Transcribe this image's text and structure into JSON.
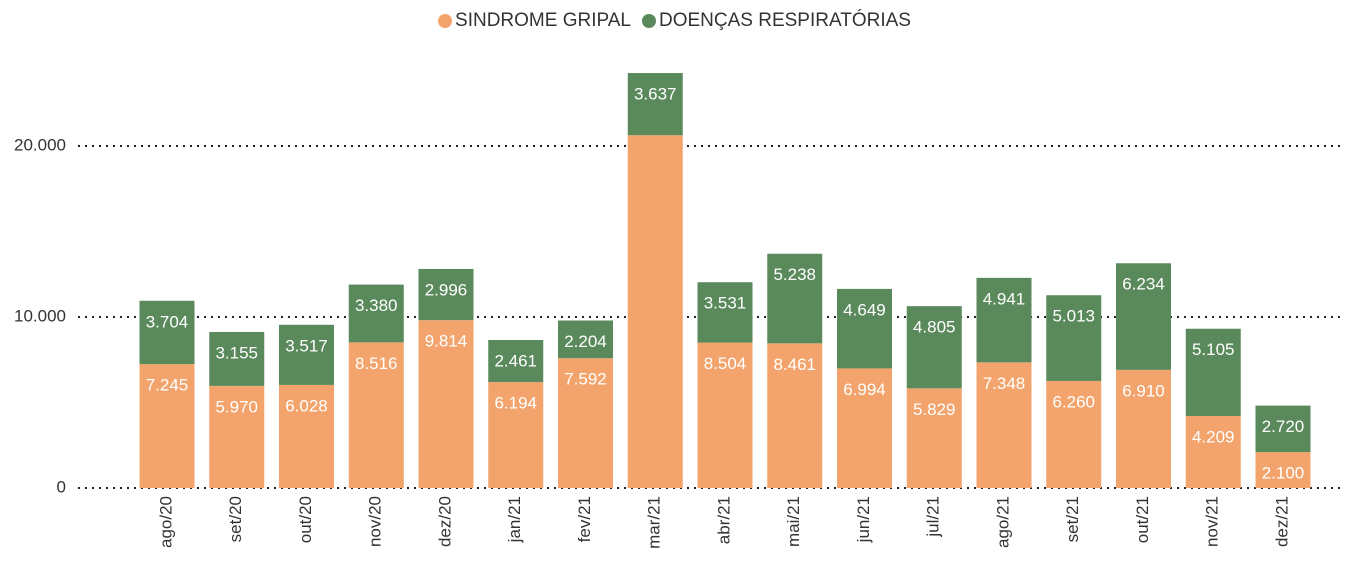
{
  "chart_data": {
    "type": "stacked_bar",
    "categories": [
      "ago/20",
      "set/20",
      "out/20",
      "nov/20",
      "dez/20",
      "jan/21",
      "fev/21",
      "mar/21",
      "abr/21",
      "mai/21",
      "jun/21",
      "jul/21",
      "ago/21",
      "set/21",
      "out/21",
      "nov/21",
      "dez/21"
    ],
    "series": [
      {
        "name": "SINDROME GRIPAL",
        "color": "#f2a46c",
        "values": [
          7245,
          5970,
          6028,
          8516,
          9814,
          6194,
          7592,
          20630,
          8504,
          8461,
          6994,
          5829,
          7348,
          6260,
          6910,
          4209,
          2100
        ],
        "value_labels": [
          "7.245",
          "5.970",
          "6.028",
          "8.516",
          "9.814",
          "6.194",
          "7.592",
          null,
          "8.504",
          "8.461",
          "6.994",
          "5.829",
          "7.348",
          "6.260",
          "6.910",
          "4.209",
          "2.100"
        ]
      },
      {
        "name": "DOENÇAS RESPIRATÓRIAS",
        "color": "#5a8a5c",
        "values": [
          3704,
          3155,
          3517,
          3380,
          2996,
          2461,
          2204,
          3637,
          3531,
          5238,
          4649,
          4805,
          4941,
          5013,
          6234,
          5105,
          2720
        ],
        "value_labels": [
          "3.704",
          "3.155",
          "3.517",
          "3.380",
          "2.996",
          "2.461",
          "2.204",
          "3.637",
          "3.531",
          "5.238",
          "4.649",
          "4.805",
          "4.941",
          "5.013",
          "6.234",
          "5.105",
          "2.720"
        ]
      }
    ],
    "ylim": [
      0,
      25000
    ],
    "yticks": [
      0,
      {
        "value": 10000,
        "label": "10.000"
      },
      {
        "value": 20000,
        "label": "20.000"
      }
    ],
    "grid": true,
    "legend": "top"
  }
}
